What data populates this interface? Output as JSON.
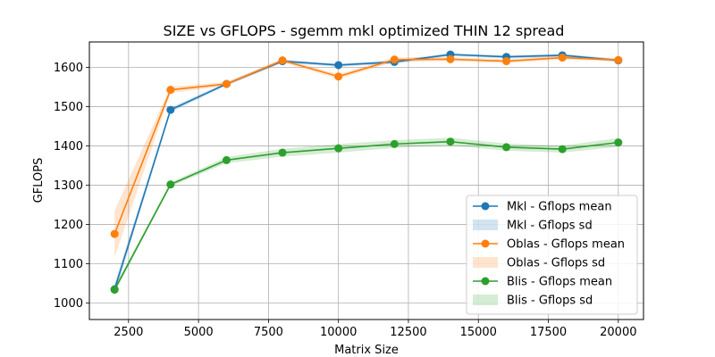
{
  "chart_data": {
    "type": "line",
    "title": "SIZE vs GFLOPS - sgemm mkl optimized THIN 12 spread",
    "xlabel": "Matrix Size",
    "ylabel": "GFLOPS",
    "xlim": [
      1100,
      20900
    ],
    "ylim": [
      958,
      1665
    ],
    "xticks": [
      2500,
      5000,
      7500,
      10000,
      12500,
      15000,
      17500,
      20000
    ],
    "yticks": [
      1000,
      1100,
      1200,
      1300,
      1400,
      1500,
      1600
    ],
    "grid": true,
    "legend_position": "lower-right",
    "x": [
      2000,
      4000,
      6000,
      8000,
      10000,
      12000,
      14000,
      16000,
      18000,
      20000
    ],
    "series": [
      {
        "name": "Mkl - Gflops mean",
        "sd_name": "Mkl - Gflops sd",
        "color": "#1f77b4",
        "values": [
          1035,
          1492,
          1558,
          1616,
          1606,
          1614,
          1633,
          1627,
          1631,
          1618
        ],
        "sd": [
          15,
          6,
          4,
          4,
          4,
          4,
          4,
          4,
          4,
          4
        ]
      },
      {
        "name": "Oblas - Gflops mean",
        "sd_name": "Oblas - Gflops sd",
        "color": "#ff7f0e",
        "values": [
          1176,
          1543,
          1558,
          1618,
          1577,
          1620,
          1621,
          1616,
          1625,
          1619
        ],
        "sd": [
          60,
          8,
          5,
          5,
          6,
          6,
          5,
          5,
          5,
          4
        ]
      },
      {
        "name": "Blis - Gflops mean",
        "sd_name": "Blis - Gflops sd",
        "color": "#2ca02c",
        "values": [
          1034,
          1302,
          1364,
          1383,
          1394,
          1405,
          1411,
          1397,
          1392,
          1409
        ],
        "sd": [
          8,
          5,
          8,
          10,
          11,
          10,
          10,
          9,
          9,
          11
        ]
      }
    ]
  }
}
